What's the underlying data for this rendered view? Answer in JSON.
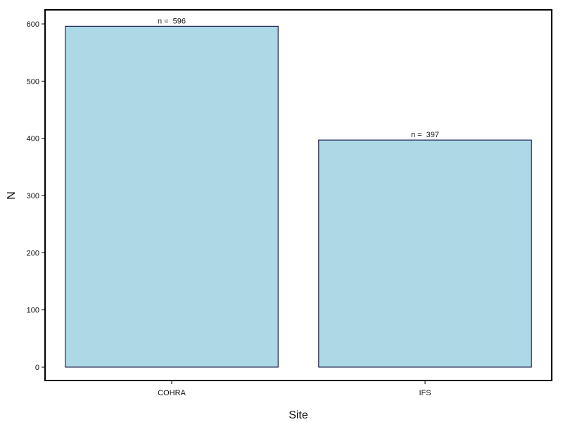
{
  "chart_data": {
    "type": "bar",
    "title": "",
    "xlabel": "Site",
    "ylabel": "N",
    "categories": [
      "COHRA",
      "IFS"
    ],
    "values": [
      596,
      397
    ],
    "data_labels": [
      "n =  596",
      "n =  397"
    ],
    "ylim": [
      0,
      600
    ],
    "yticks": [
      0,
      100,
      200,
      300,
      400,
      500,
      600
    ],
    "ytick_labels": [
      "0",
      "100",
      "200",
      "300",
      "400",
      "500",
      "600"
    ],
    "grid": false,
    "legend": "none",
    "colors": {
      "bar_fill": "#add8e6",
      "bar_stroke": "#000033",
      "frame": "#000000"
    }
  }
}
